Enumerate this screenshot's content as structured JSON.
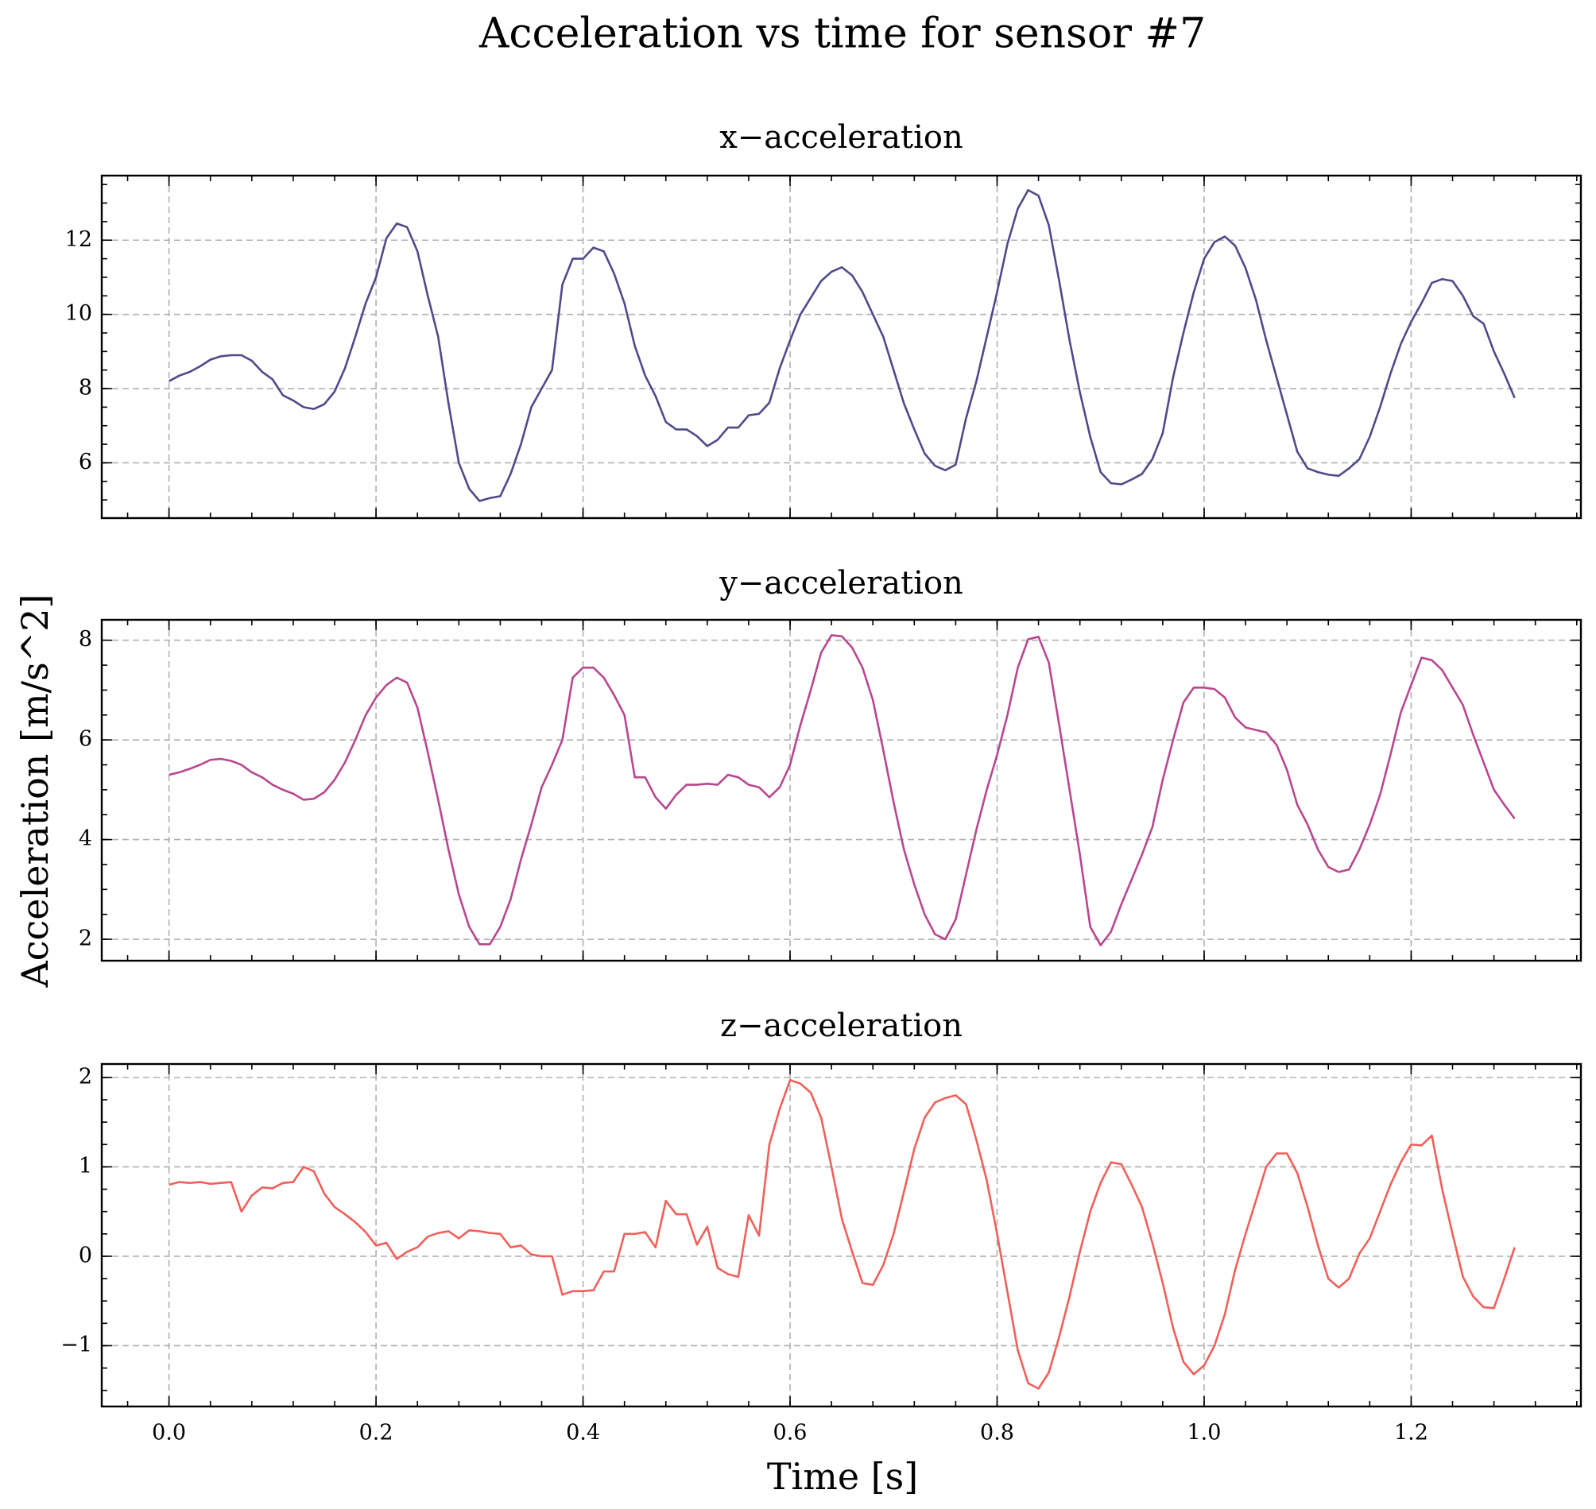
{
  "chart_data": {
    "type": "line",
    "title": "Acceleration vs time for sensor #7",
    "xlabel": "Time [s]",
    "ylabel": "Acceleration [m/s^2]",
    "grid": true,
    "xlim": [
      -0.065,
      1.364
    ],
    "xticks": [
      {
        "value": 0,
        "label": "0.0"
      },
      0.2,
      0.4,
      0.6,
      0.8,
      {
        "value": 1,
        "label": "1.0"
      },
      1.2
    ],
    "x": [
      0,
      0.01,
      0.02,
      0.03,
      0.04,
      0.05,
      0.06,
      0.07,
      0.08,
      0.09,
      0.1,
      0.11,
      0.12,
      0.13,
      0.14,
      0.15,
      0.16,
      0.17,
      0.18,
      0.19,
      0.2,
      0.21,
      0.22,
      0.23,
      0.24,
      0.25,
      0.26,
      0.27,
      0.28,
      0.29,
      0.3,
      0.31,
      0.32,
      0.33,
      0.34,
      0.35,
      0.36,
      0.37,
      0.38,
      0.39,
      0.4,
      0.41,
      0.42,
      0.43,
      0.44,
      0.45,
      0.46,
      0.47,
      0.48,
      0.49,
      0.5,
      0.51,
      0.52,
      0.53,
      0.54,
      0.55,
      0.56,
      0.57,
      0.58,
      0.59,
      0.6,
      0.61,
      0.62,
      0.63,
      0.64,
      0.65,
      0.66,
      0.67,
      0.68,
      0.69,
      0.7,
      0.71,
      0.72,
      0.73,
      0.74,
      0.75,
      0.76,
      0.77,
      0.78,
      0.79,
      0.8,
      0.81,
      0.82,
      0.83,
      0.84,
      0.85,
      0.86,
      0.87,
      0.88,
      0.89,
      0.9,
      0.91,
      0.92,
      0.93,
      0.94,
      0.95,
      0.96,
      0.97,
      0.98,
      0.99,
      1,
      1.01,
      1.02,
      1.03,
      1.04,
      1.05,
      1.06,
      1.07,
      1.08,
      1.09,
      1.1,
      1.11,
      1.12,
      1.13,
      1.14,
      1.15,
      1.16,
      1.17,
      1.18,
      1.19,
      1.2,
      1.21,
      1.22,
      1.23,
      1.24,
      1.25,
      1.26,
      1.27,
      1.28,
      1.29,
      1.3
    ],
    "subplots": [
      {
        "title": "x−acceleration",
        "color": "#4f4a8a",
        "ylim": [
          4.51,
          13.74
        ],
        "yticks": [
          6,
          8,
          10,
          12
        ],
        "values": [
          8.2,
          8.35,
          8.45,
          8.6,
          8.78,
          8.87,
          8.9,
          8.9,
          8.75,
          8.45,
          8.25,
          7.82,
          7.68,
          7.5,
          7.45,
          7.58,
          7.92,
          8.55,
          9.4,
          10.3,
          11.0,
          12.05,
          12.45,
          12.35,
          11.7,
          10.5,
          9.4,
          7.6,
          6.0,
          5.3,
          4.97,
          5.05,
          5.1,
          5.7,
          6.5,
          7.5,
          8.0,
          8.5,
          10.8,
          11.5,
          11.5,
          11.8,
          11.7,
          11.1,
          10.3,
          9.15,
          8.35,
          7.8,
          7.1,
          6.9,
          6.9,
          6.72,
          6.45,
          6.62,
          6.95,
          6.95,
          7.28,
          7.32,
          7.62,
          8.55,
          9.3,
          10.0,
          10.45,
          10.9,
          11.15,
          11.27,
          11.05,
          10.6,
          10.0,
          9.4,
          8.5,
          7.6,
          6.9,
          6.25,
          5.92,
          5.8,
          5.95,
          7.2,
          8.2,
          9.4,
          10.6,
          11.9,
          12.85,
          13.35,
          13.2,
          12.4,
          10.9,
          9.3,
          7.9,
          6.7,
          5.75,
          5.45,
          5.42,
          5.55,
          5.7,
          6.1,
          6.8,
          8.3,
          9.5,
          10.6,
          11.5,
          11.95,
          12.1,
          11.85,
          11.25,
          10.4,
          9.3,
          8.3,
          7.3,
          6.3,
          5.85,
          5.75,
          5.68,
          5.65,
          5.85,
          6.1,
          6.7,
          7.5,
          8.4,
          9.2,
          9.8,
          10.3,
          10.85,
          10.95,
          10.9,
          10.5,
          9.95,
          9.75,
          9.0,
          8.4,
          7.75
        ]
      },
      {
        "title": "y−acceleration",
        "color": "#b8478f",
        "ylim": [
          1.57,
          8.41
        ],
        "yticks": [
          2,
          4,
          6,
          8
        ],
        "values": [
          5.3,
          5.35,
          5.42,
          5.5,
          5.6,
          5.62,
          5.58,
          5.5,
          5.35,
          5.25,
          5.1,
          5.0,
          4.92,
          4.8,
          4.82,
          4.95,
          5.2,
          5.55,
          6.0,
          6.5,
          6.85,
          7.1,
          7.25,
          7.15,
          6.65,
          5.75,
          4.8,
          3.8,
          2.9,
          2.25,
          1.9,
          1.9,
          2.25,
          2.8,
          3.6,
          4.3,
          5.05,
          5.5,
          6.0,
          7.25,
          7.45,
          7.45,
          7.25,
          6.9,
          6.5,
          5.25,
          5.25,
          4.85,
          4.62,
          4.9,
          5.1,
          5.1,
          5.12,
          5.1,
          5.3,
          5.25,
          5.1,
          5.05,
          4.85,
          5.05,
          5.5,
          6.3,
          7.0,
          7.75,
          8.1,
          8.08,
          7.85,
          7.45,
          6.8,
          5.8,
          4.75,
          3.8,
          3.1,
          2.5,
          2.1,
          2.0,
          2.4,
          3.3,
          4.2,
          5.0,
          5.7,
          6.5,
          7.45,
          8.02,
          8.07,
          7.55,
          6.3,
          5.0,
          3.7,
          2.25,
          1.88,
          2.15,
          2.7,
          3.2,
          3.7,
          4.25,
          5.2,
          6.0,
          6.75,
          7.05,
          7.05,
          7.02,
          6.85,
          6.45,
          6.25,
          6.2,
          6.15,
          5.9,
          5.4,
          4.7,
          4.3,
          3.8,
          3.45,
          3.35,
          3.4,
          3.8,
          4.3,
          4.9,
          5.7,
          6.55,
          7.1,
          7.65,
          7.6,
          7.4,
          7.05,
          6.7,
          6.1,
          5.55,
          5.0,
          4.7,
          4.42
        ]
      },
      {
        "title": "z−acceleration",
        "color": "#f0605a",
        "ylim": [
          -1.68,
          2.15
        ],
        "yticks": [
          {
            "value": -1,
            "label": "−1"
          },
          0,
          1,
          2
        ],
        "values": [
          0.8,
          0.83,
          0.82,
          0.83,
          0.81,
          0.82,
          0.83,
          0.5,
          0.68,
          0.77,
          0.76,
          0.82,
          0.83,
          1.0,
          0.95,
          0.7,
          0.55,
          0.47,
          0.38,
          0.27,
          0.12,
          0.15,
          -0.03,
          0.05,
          0.1,
          0.22,
          0.26,
          0.28,
          0.2,
          0.29,
          0.28,
          0.26,
          0.25,
          0.1,
          0.12,
          0.02,
          0.0,
          0.0,
          -0.43,
          -0.39,
          -0.39,
          -0.38,
          -0.17,
          -0.17,
          0.25,
          0.25,
          0.27,
          0.1,
          0.62,
          0.47,
          0.47,
          0.13,
          0.33,
          -0.13,
          -0.2,
          -0.23,
          0.46,
          0.23,
          1.25,
          1.65,
          1.97,
          1.93,
          1.83,
          1.55,
          1.0,
          0.42,
          0.05,
          -0.3,
          -0.32,
          -0.1,
          0.25,
          0.72,
          1.2,
          1.55,
          1.72,
          1.77,
          1.8,
          1.7,
          1.3,
          0.85,
          0.25,
          -0.4,
          -1.05,
          -1.42,
          -1.48,
          -1.3,
          -0.9,
          -0.45,
          0.05,
          0.5,
          0.82,
          1.05,
          1.03,
          0.8,
          0.55,
          0.15,
          -0.3,
          -0.8,
          -1.18,
          -1.32,
          -1.22,
          -1.0,
          -0.65,
          -0.15,
          0.25,
          0.62,
          1.0,
          1.15,
          1.15,
          0.93,
          0.55,
          0.12,
          -0.25,
          -0.35,
          -0.25,
          0.03,
          0.2,
          0.5,
          0.8,
          1.05,
          1.25,
          1.24,
          1.35,
          0.75,
          0.25,
          -0.23,
          -0.45,
          -0.57,
          -0.58,
          -0.25,
          0.1
        ]
      }
    ]
  }
}
